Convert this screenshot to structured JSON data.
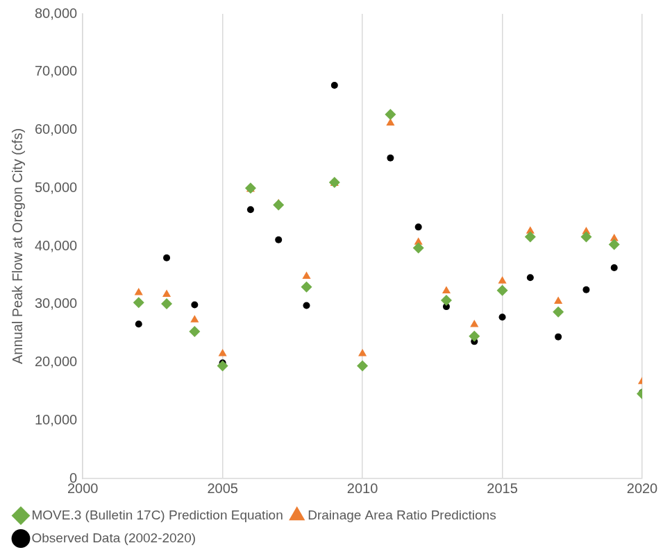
{
  "chart_data": {
    "type": "scatter",
    "y_label": "Annual Peak Flow at Oregon City (cfs)",
    "x": [
      2002,
      2003,
      2004,
      2005,
      2006,
      2007,
      2008,
      2009,
      2010,
      2011,
      2012,
      2013,
      2014,
      2015,
      2016,
      2017,
      2018,
      2019,
      2020
    ],
    "series": [
      {
        "name": "Observed Data (2002-2020)",
        "color": "#000000",
        "marker": "circle",
        "values": [
          26600,
          38000,
          29900,
          19900,
          46300,
          41100,
          29800,
          67700,
          19400,
          55200,
          43300,
          29600,
          23600,
          27800,
          34600,
          24400,
          32500,
          36300,
          14800
        ]
      },
      {
        "name": "Drainage Area Ratio Predictions",
        "color": "#ed7d31",
        "marker": "triangle",
        "values": [
          32000,
          31700,
          27300,
          21500,
          49800,
          47300,
          34800,
          50800,
          21500,
          61200,
          40700,
          32300,
          26500,
          34000,
          42600,
          30500,
          42500,
          41300,
          16700
        ]
      },
      {
        "name": "MOVE.3 (Bulletin 17C) Prediction Equation",
        "color": "#70ad47",
        "marker": "diamond",
        "values": [
          30300,
          30100,
          25300,
          19400,
          50000,
          47100,
          33000,
          51000,
          19400,
          62700,
          39700,
          30700,
          24500,
          32400,
          41600,
          28700,
          41600,
          40300,
          14600
        ]
      }
    ],
    "xlim": [
      2000,
      2020
    ],
    "xticks": [
      2000,
      2005,
      2010,
      2015,
      2020
    ],
    "ylim": [
      0,
      80000
    ],
    "yticks": [
      0,
      {
        "value": 10000,
        "label": "10,000"
      },
      {
        "value": 20000,
        "label": "20,000"
      },
      {
        "value": 30000,
        "label": "30,000"
      },
      {
        "value": 40000,
        "label": "40,000"
      },
      {
        "value": 50000,
        "label": "50,000"
      },
      {
        "value": 60000,
        "label": "60,000"
      },
      {
        "value": 70000,
        "label": "70,000"
      },
      {
        "value": 80000,
        "label": "80,000"
      }
    ],
    "grid": "x",
    "legend": "bottom"
  }
}
